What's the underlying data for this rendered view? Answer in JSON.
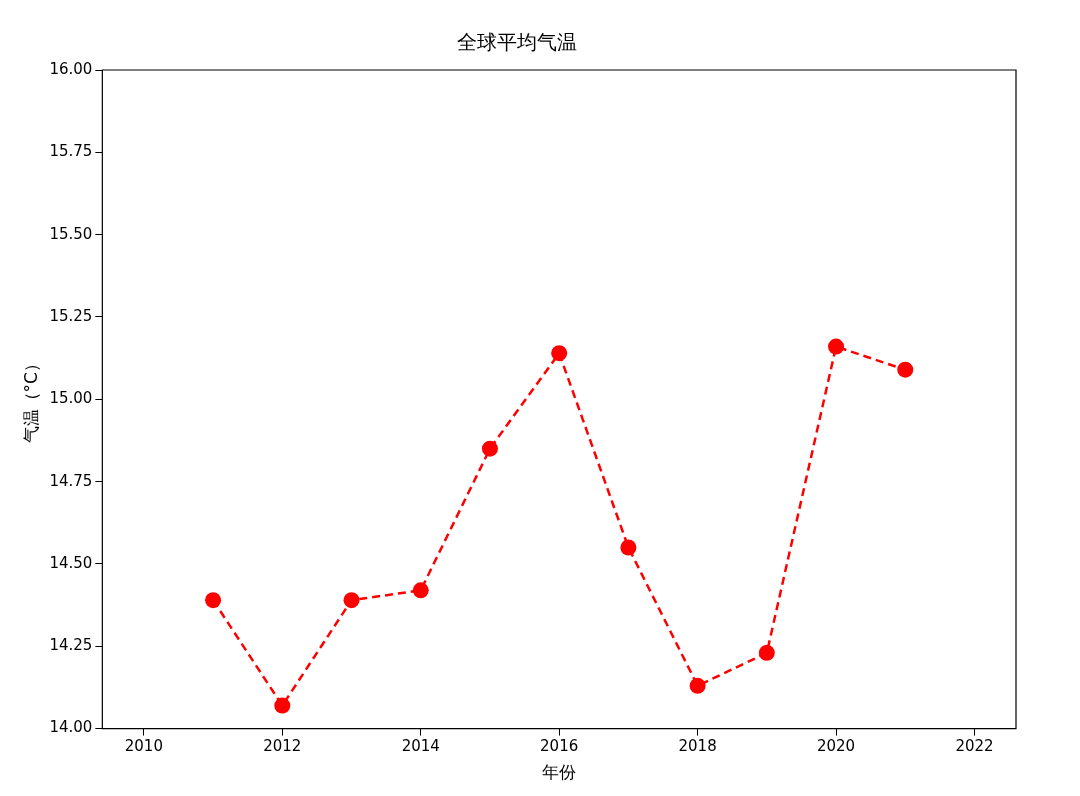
{
  "chart_data": {
    "type": "line",
    "title": "全球平均气温",
    "xlabel": "年份",
    "ylabel": "气温（°C）",
    "x": [
      2011,
      2012,
      2013,
      2014,
      2015,
      2016,
      2017,
      2018,
      2019,
      2020,
      2021
    ],
    "series": [
      {
        "color": "#ff0000",
        "values": [
          14.39,
          14.07,
          14.39,
          14.42,
          14.85,
          15.14,
          14.55,
          14.13,
          14.23,
          15.16,
          15.09
        ]
      }
    ],
    "xlim": [
      2009.4,
      2022.6
    ],
    "xticks": [
      2010,
      2012,
      2014,
      2016,
      2018,
      2020,
      2022
    ],
    "ylim": [
      14,
      16
    ],
    "yticks": [
      {
        "value": 14,
        "label": "14.00"
      },
      {
        "value": 14.25,
        "label": "14.25"
      },
      {
        "value": 14.5,
        "label": "14.50"
      },
      {
        "value": 14.75,
        "label": "14.75"
      },
      {
        "value": 15,
        "label": "15.00"
      },
      {
        "value": 15.25,
        "label": "15.25"
      },
      {
        "value": 15.5,
        "label": "15.50"
      },
      {
        "value": 15.75,
        "label": "15.75"
      },
      {
        "value": 16,
        "label": "16.00"
      }
    ],
    "grid": false,
    "legend": false,
    "marker": "circle",
    "line_style": "dashed"
  }
}
